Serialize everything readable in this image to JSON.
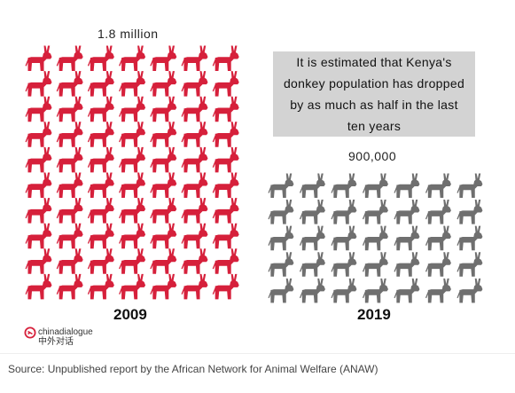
{
  "chart_data": {
    "type": "pictogram",
    "icon": "donkey-icon",
    "series": [
      {
        "year": "2009",
        "value": 1800000,
        "value_label": "1.8 million",
        "icons": 70,
        "color": "#d6203b"
      },
      {
        "year": "2019",
        "value": 900000,
        "value_label": "900,000",
        "icons": 35,
        "color": "#6f6f6f"
      }
    ],
    "annotation": "It is estimated that Kenya's donkey population has dropped by as much as half in the last ten years"
  },
  "brand": {
    "name_en": "chinadialogue",
    "name_zh": "中外对话"
  },
  "source": "Source: Unpublished report by the African Network for Animal Welfare (ANAW)"
}
